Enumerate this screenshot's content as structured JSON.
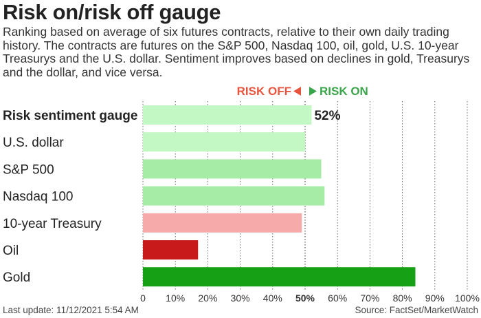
{
  "title": "Risk on/risk off gauge",
  "subtitle": "Ranking based on average of six futures contracts, relative to their own daily trading history. The contracts are futures on the S&P 500, Nasdaq 100, oil, gold, U.S. 10-year Treasurys and the U.S. dollar. Sentiment improves based on declines in gold, Treasurys and the dollar, and vice versa.",
  "footer": {
    "last_update": "Last update: 11/12/2021 5:54 AM",
    "source": "Source: FactSet/MarketWatch"
  },
  "legend": {
    "risk_off": "RISK OFF",
    "risk_on": "RISK ON",
    "risk_off_color": "#e8553e",
    "risk_on_color": "#3aa54a"
  },
  "chart_data": {
    "type": "bar",
    "orientation": "horizontal",
    "categories": [
      "Risk sentiment gauge",
      "U.S. dollar",
      "S&P 500",
      "Nasdaq 100",
      "10-year Treasury",
      "Oil",
      "Gold"
    ],
    "values": [
      52,
      50,
      55,
      56,
      49,
      17,
      84
    ],
    "colors": [
      "#c3f7c3",
      "#c3f7c3",
      "#a6eca6",
      "#a6eca6",
      "#f6aaaa",
      "#c81a1a",
      "#16a016"
    ],
    "bold_category": "Risk sentiment gauge",
    "value_labels": [
      "52%",
      "",
      "",
      "",
      "",
      "",
      ""
    ],
    "xlim": [
      0,
      100
    ],
    "xticks": [
      "0",
      "10%",
      "20%",
      "30%",
      "40%",
      "50%",
      "60%",
      "70%",
      "80%",
      "90%",
      "100%"
    ],
    "grid": true,
    "midline": 50
  }
}
